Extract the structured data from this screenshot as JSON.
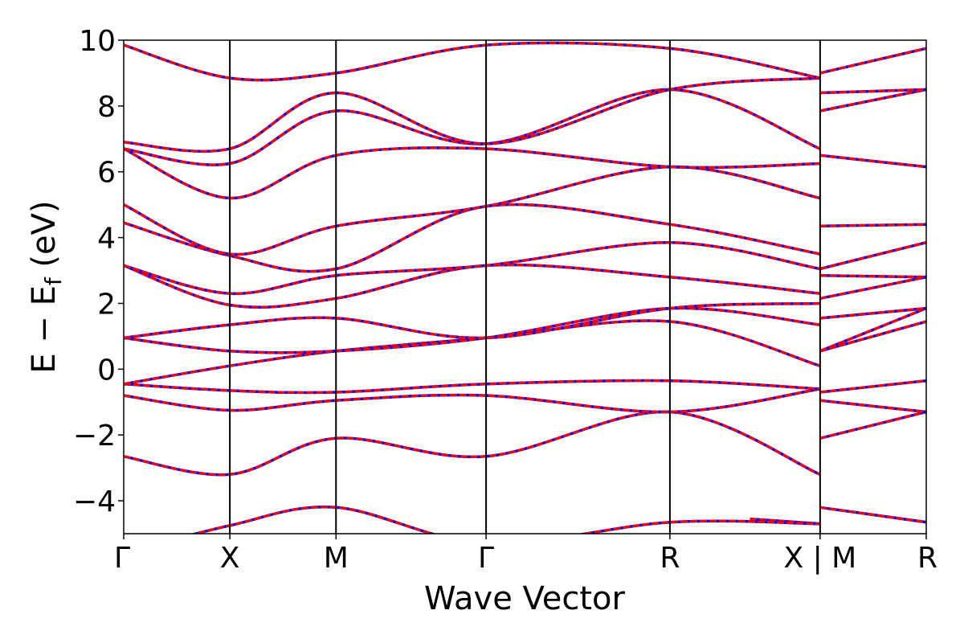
{
  "chart_data": {
    "type": "line",
    "title": "",
    "xlabel": "Wave Vector",
    "ylabel": "E − E",
    "ylabel_subscript": "f",
    "ylabel_unit": " (eV)",
    "ylim": [
      -5,
      10
    ],
    "yticks": [
      -4,
      -2,
      0,
      2,
      4,
      6,
      8,
      10
    ],
    "ytick_labels": [
      "−4",
      "−2",
      "0",
      "2",
      "4",
      "6",
      "8",
      "10"
    ],
    "grid": false,
    "legend": "none",
    "colors": {
      "solid": "#ff0000",
      "dashed": "#0000ff"
    },
    "segments": [
      {
        "labels": [
          "Γ",
          "X",
          "M",
          "Γ",
          "R",
          "X"
        ],
        "k": [
          0,
          1.0,
          2.0,
          3.414,
          5.146,
          6.561
        ],
        "bands": [
          [
            -2.65,
            -3.2,
            -2.1,
            -2.65,
            -1.3,
            -3.2
          ],
          [
            -0.8,
            -1.25,
            -0.95,
            -0.8,
            -1.3,
            -0.6
          ],
          [
            -0.45,
            -0.65,
            -0.7,
            -0.45,
            -0.35,
            -0.6
          ],
          [
            -0.45,
            0.1,
            0.55,
            0.95,
            1.45,
            0.1
          ],
          [
            0.95,
            0.55,
            0.55,
            0.95,
            1.85,
            1.35
          ],
          [
            0.95,
            1.35,
            1.55,
            0.95,
            1.85,
            2.0
          ],
          [
            3.15,
            1.95,
            2.15,
            3.15,
            2.8,
            2.3
          ],
          [
            3.15,
            2.3,
            2.85,
            3.15,
            3.85,
            3.05
          ],
          [
            4.45,
            3.45,
            3.05,
            4.95,
            4.4,
            3.5
          ],
          [
            5.0,
            3.5,
            4.35,
            4.95,
            6.15,
            5.2
          ],
          [
            6.7,
            5.2,
            6.5,
            6.7,
            6.15,
            6.25
          ],
          [
            6.7,
            6.25,
            7.85,
            6.85,
            8.5,
            6.7
          ],
          [
            6.9,
            6.7,
            8.4,
            6.85,
            8.5,
            8.85
          ],
          [
            9.85,
            8.85,
            9.0,
            9.85,
            9.75,
            8.85
          ]
        ]
      },
      {
        "labels": [
          "M",
          "R"
        ],
        "k": [
          6.561,
          7.561
        ],
        "bands": [
          [
            -2.1,
            -1.3
          ],
          [
            -0.95,
            -1.3
          ],
          [
            -0.7,
            -0.35
          ],
          [
            0.55,
            1.45
          ],
          [
            0.55,
            1.85
          ],
          [
            1.55,
            1.85
          ],
          [
            2.15,
            2.8
          ],
          [
            2.85,
            2.8
          ],
          [
            3.05,
            3.85
          ],
          [
            4.35,
            4.4
          ],
          [
            6.5,
            6.15
          ],
          [
            7.85,
            8.5
          ],
          [
            8.4,
            8.5
          ],
          [
            9.0,
            9.75
          ]
        ]
      },
      {
        "labels": [],
        "k": [
          5.9,
          6.561
        ],
        "bands": [
          [
            -4.55,
            -4.7
          ]
        ]
      }
    ],
    "low_band": {
      "k": [
        0,
        1.0,
        2.0,
        3.414,
        5.146,
        6.561,
        6.561,
        7.561
      ],
      "e": [
        -5.6,
        -4.75,
        -4.2,
        -5.3,
        -4.65,
        -4.7,
        -4.2,
        -4.65
      ]
    },
    "x_tick_labels": [
      "Γ",
      "X",
      "M",
      "Γ",
      "R",
      "X | M",
      "R"
    ]
  }
}
